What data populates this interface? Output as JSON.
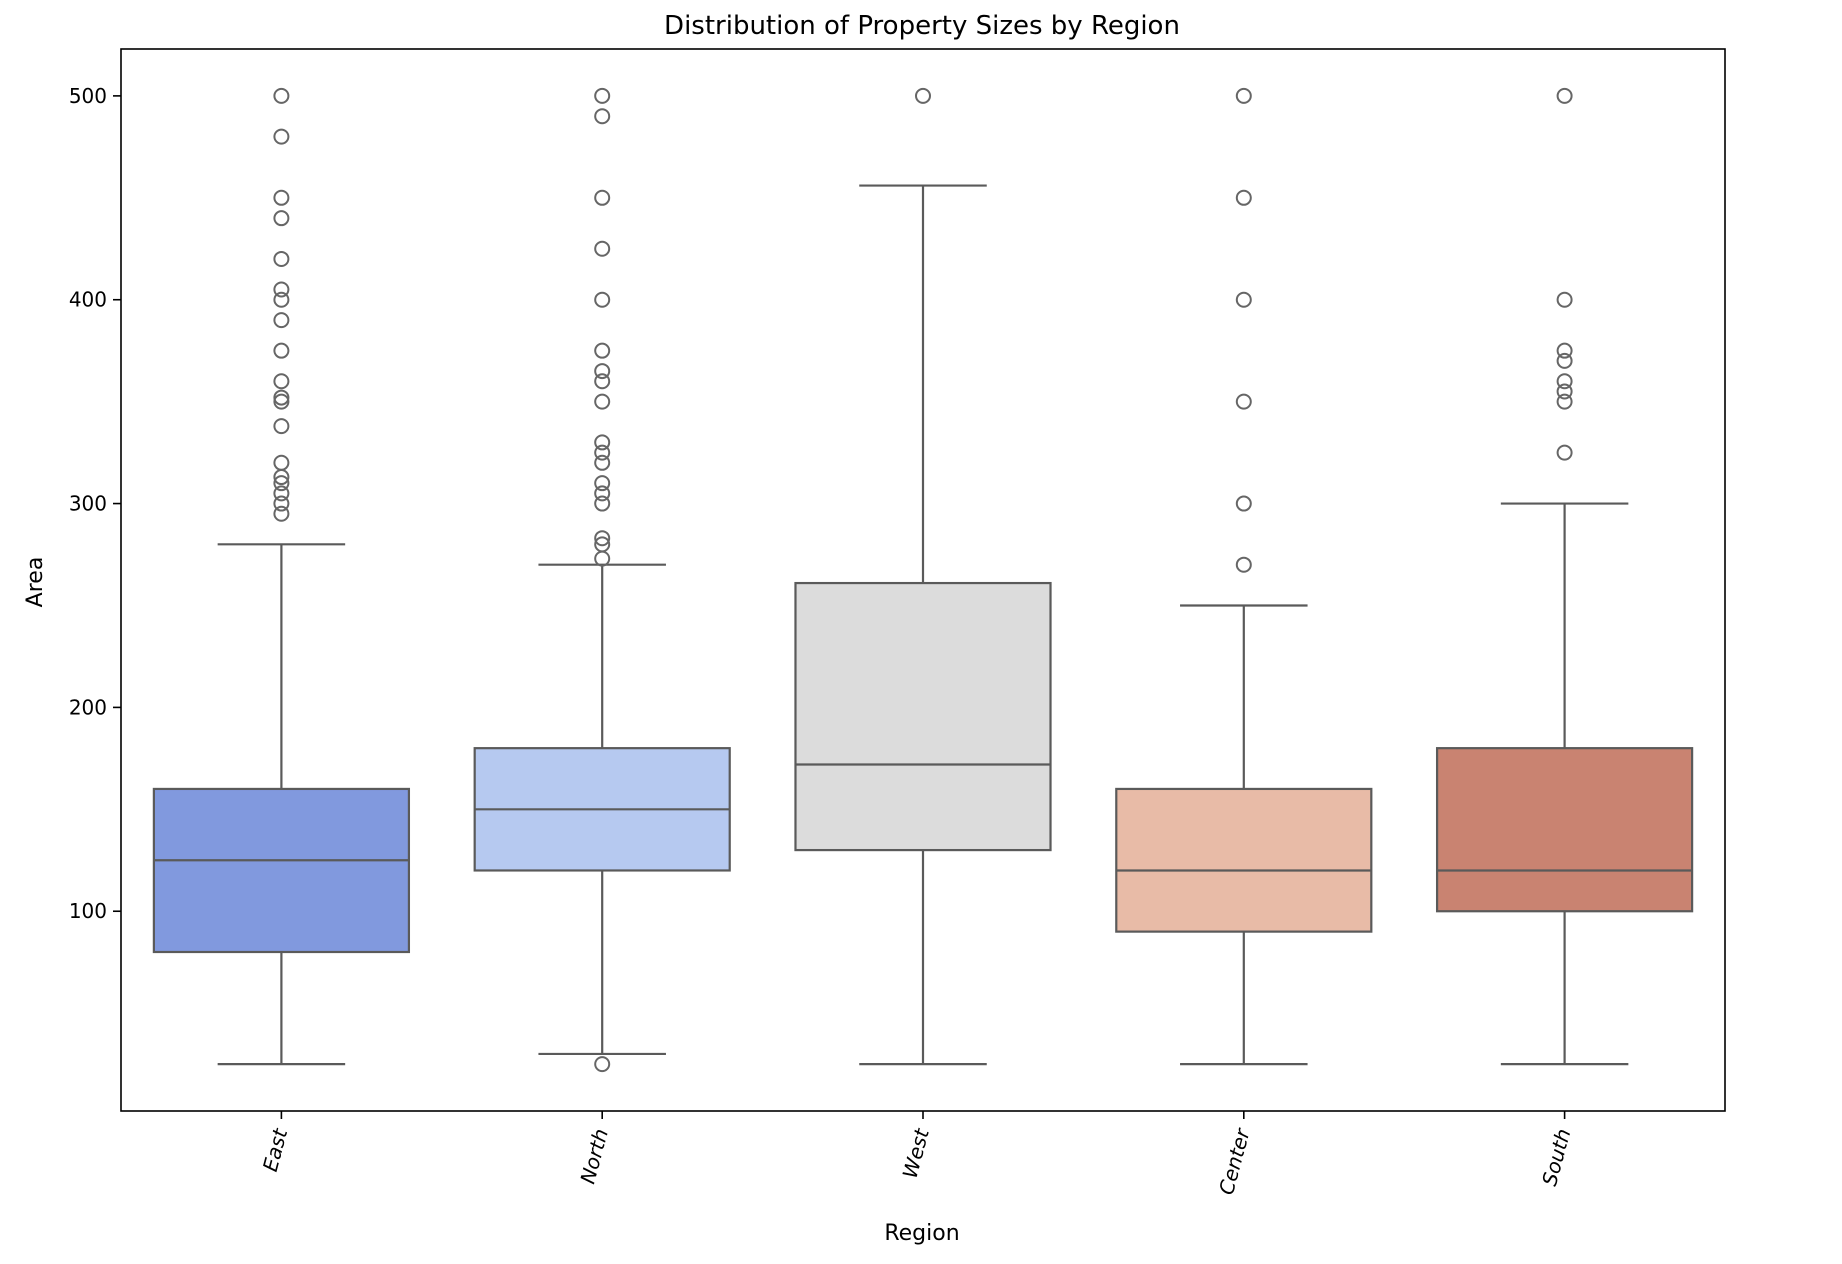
{
  "chart_data": {
    "type": "box",
    "title": "Distribution of Property Sizes by Region",
    "xlabel": "Region",
    "ylabel": "Area",
    "ylim": [
      2,
      523
    ],
    "yticks": [
      100,
      200,
      300,
      400,
      500
    ],
    "grid": false,
    "categories": [
      "East",
      "North",
      "West",
      "Center",
      "South"
    ],
    "boxes": [
      {
        "category": "East",
        "color": "#8199de",
        "whisker_low": 25,
        "q1": 80,
        "median": 125,
        "q3": 160,
        "whisker_high": 280,
        "outliers": [
          295,
          300,
          305,
          310,
          313,
          320,
          338,
          350,
          352,
          360,
          375,
          390,
          400,
          405,
          420,
          440,
          450,
          480,
          500
        ]
      },
      {
        "category": "North",
        "color": "#b6c9f0",
        "whisker_low": 30,
        "q1": 120,
        "median": 150,
        "q3": 180,
        "whisker_high": 270,
        "outliers": [
          25,
          273,
          280,
          283,
          300,
          305,
          310,
          320,
          325,
          330,
          350,
          360,
          365,
          375,
          400,
          425,
          450,
          490,
          500
        ]
      },
      {
        "category": "West",
        "color": "#dcdcdc",
        "whisker_low": 25,
        "q1": 130,
        "median": 172,
        "q3": 261,
        "whisker_high": 456,
        "outliers": [
          500
        ]
      },
      {
        "category": "Center",
        "color": "#e8bba7",
        "whisker_low": 25,
        "q1": 90,
        "median": 120,
        "q3": 160,
        "whisker_high": 250,
        "outliers": [
          270,
          300,
          350,
          400,
          450,
          500
        ]
      },
      {
        "category": "South",
        "color": "#c98371",
        "whisker_low": 25,
        "q1": 100,
        "median": 120,
        "q3": 180,
        "whisker_high": 300,
        "outliers": [
          325,
          350,
          355,
          360,
          370,
          375,
          400,
          500
        ]
      }
    ]
  }
}
